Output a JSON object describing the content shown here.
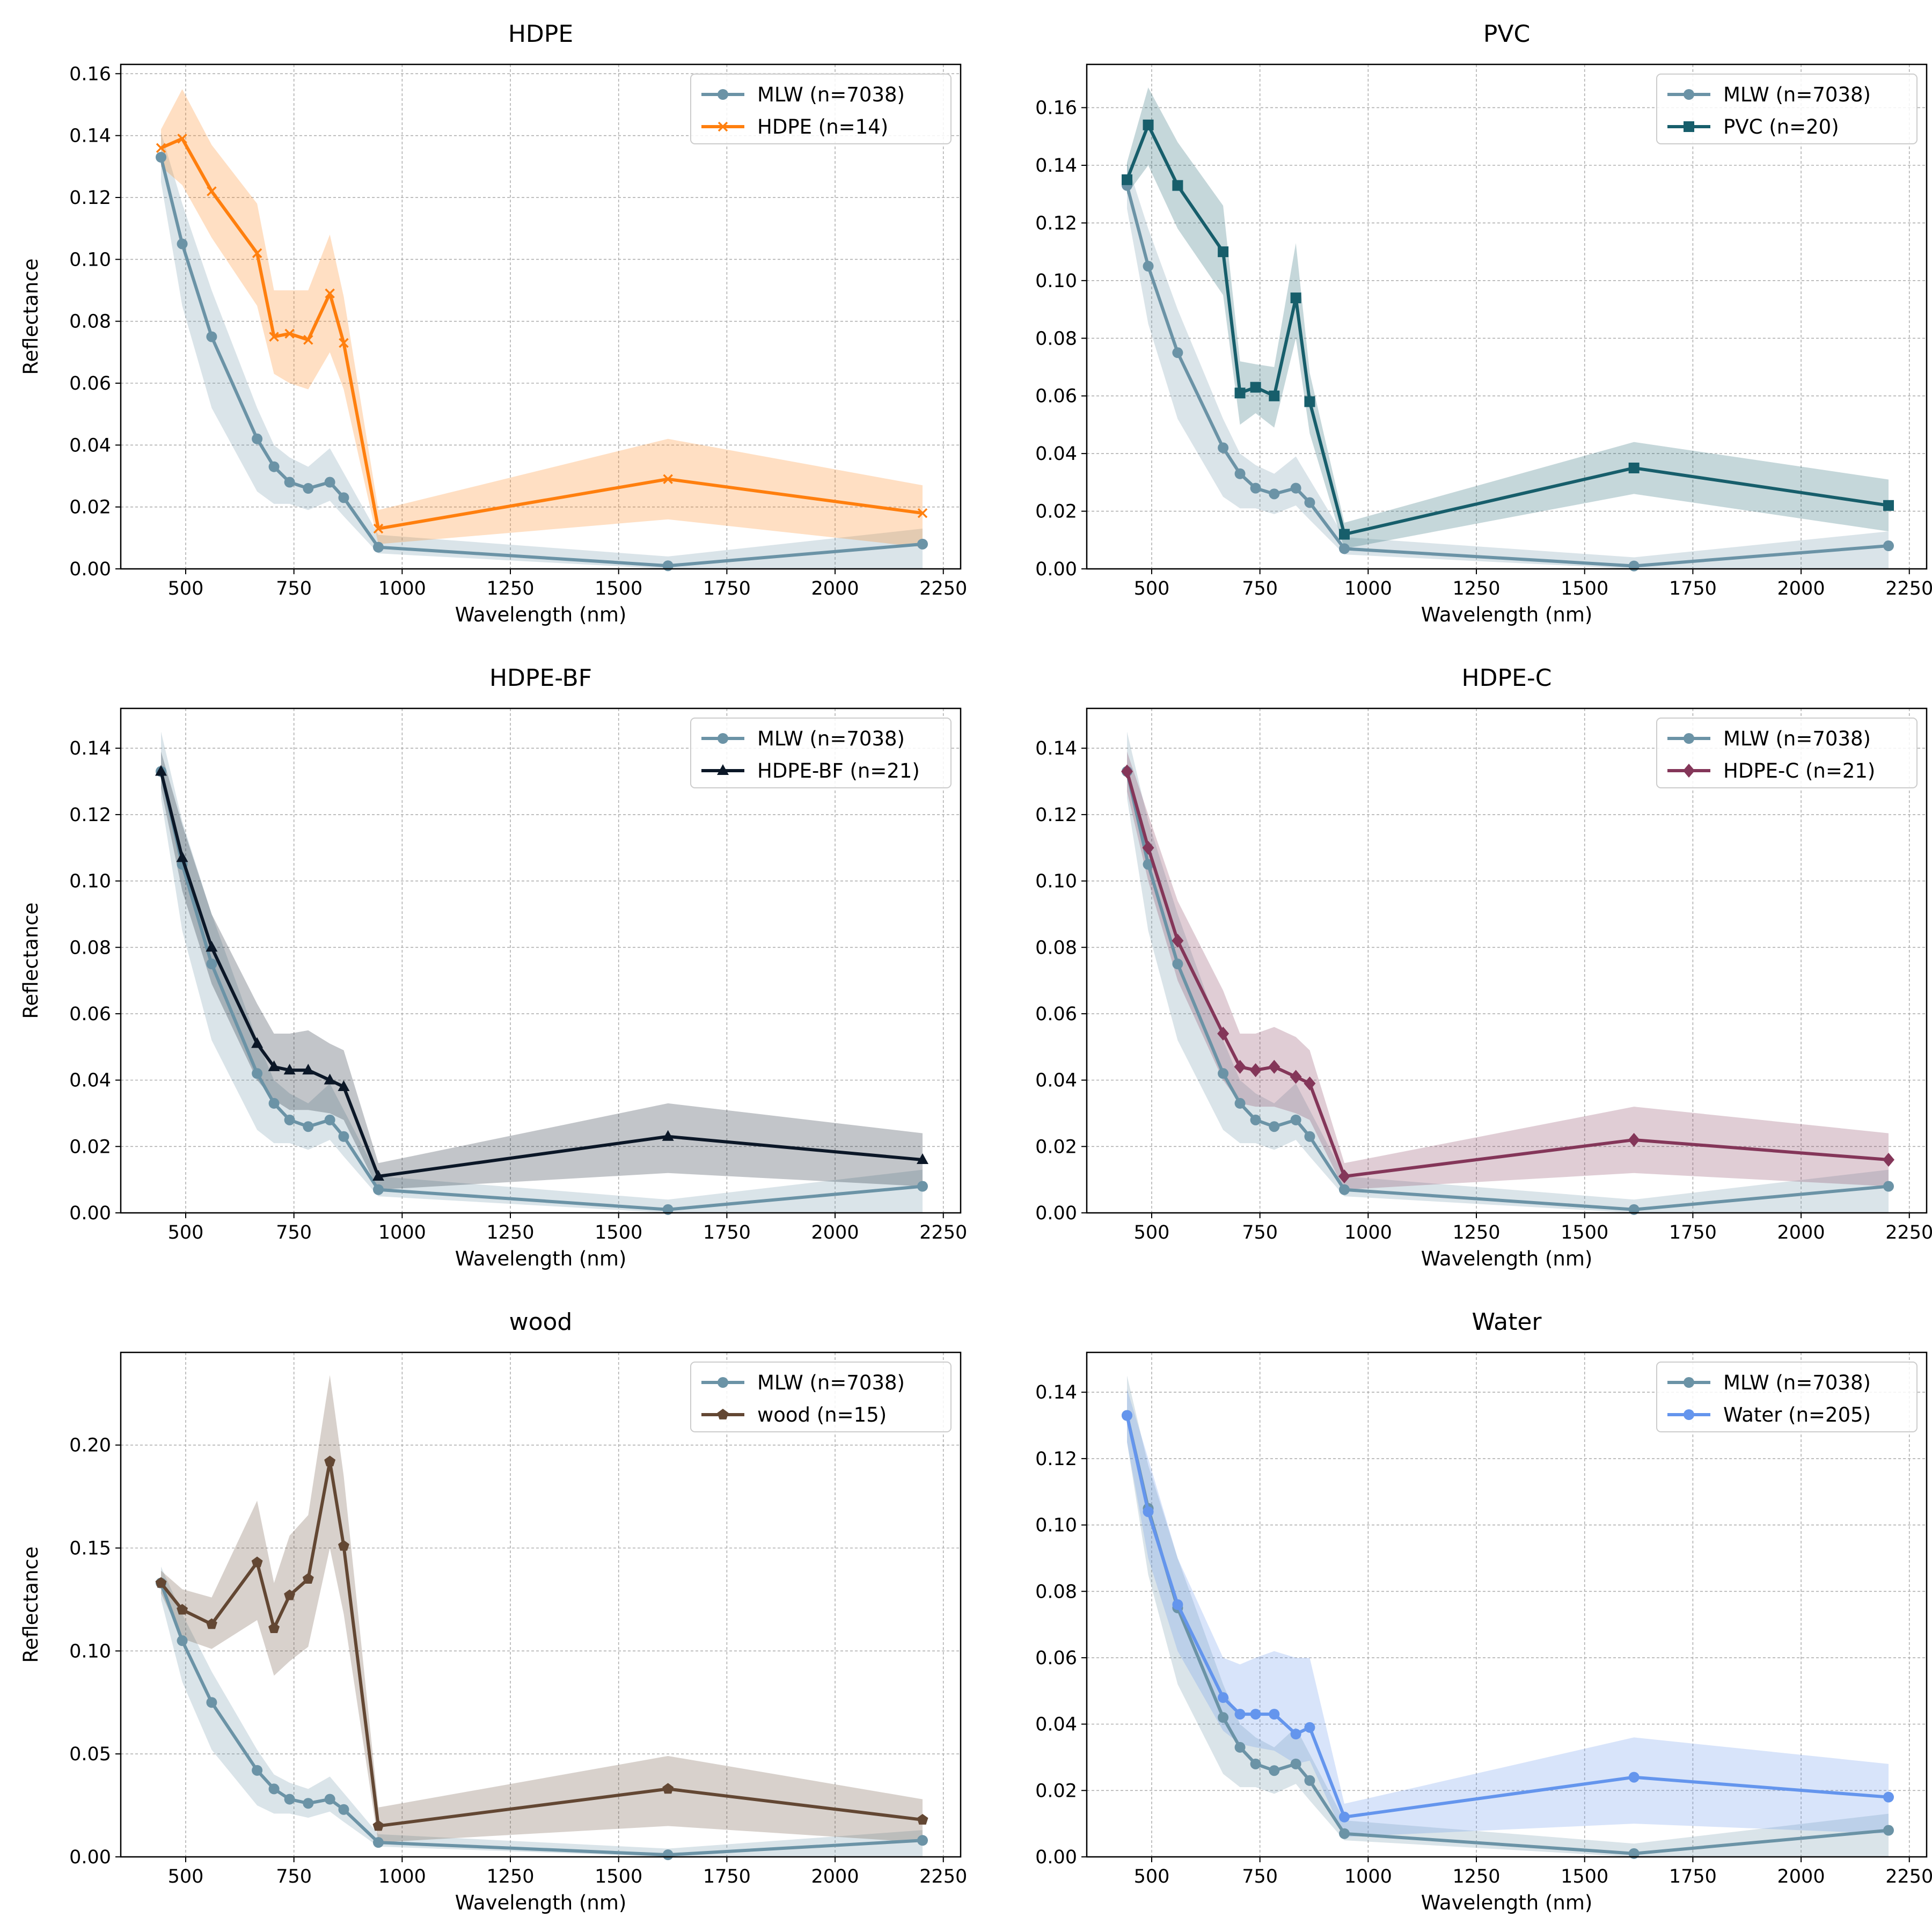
{
  "figure": {
    "xlabel": "Wavelength (nm)",
    "ylabel": "Reflectance"
  },
  "chart_data": [
    {
      "type": "line",
      "title": "HDPE",
      "xlabel": "Wavelength (nm)",
      "ylabel": "Reflectance",
      "xlim": [
        350,
        2290
      ],
      "ylim": [
        0,
        0.163
      ],
      "xticks": [
        500,
        750,
        1000,
        1250,
        1500,
        1750,
        2000,
        2250
      ],
      "yticks": [
        0.0,
        0.02,
        0.04,
        0.06,
        0.08,
        0.1,
        0.12,
        0.14,
        0.16
      ],
      "ytick_decimals": 2,
      "grid": true,
      "legend": "upper right",
      "series": [
        {
          "name": "MLW (n=7038)",
          "color": "#6b93a6",
          "marker": "circle",
          "x": [
            443,
            492,
            560,
            665,
            704,
            740,
            783,
            833,
            865,
            945,
            1614,
            2202
          ],
          "y": [
            0.133,
            0.105,
            0.075,
            0.042,
            0.033,
            0.028,
            0.026,
            0.028,
            0.023,
            0.007,
            0.001,
            0.008
          ],
          "lower": [
            0.125,
            0.085,
            0.052,
            0.025,
            0.021,
            0.021,
            0.019,
            0.022,
            0.017,
            0.005,
            0.0,
            0.0
          ],
          "upper": [
            0.141,
            0.118,
            0.09,
            0.052,
            0.04,
            0.036,
            0.033,
            0.039,
            0.031,
            0.011,
            0.004,
            0.013
          ]
        },
        {
          "name": "HDPE (n=14)",
          "color": "#ff7f0e",
          "marker": "x",
          "x": [
            443,
            492,
            560,
            665,
            704,
            740,
            783,
            833,
            865,
            945,
            1614,
            2202
          ],
          "y": [
            0.136,
            0.139,
            0.122,
            0.102,
            0.075,
            0.076,
            0.074,
            0.089,
            0.073,
            0.013,
            0.029,
            0.018
          ],
          "lower": [
            0.13,
            0.124,
            0.107,
            0.085,
            0.063,
            0.06,
            0.058,
            0.07,
            0.058,
            0.008,
            0.016,
            0.007
          ],
          "upper": [
            0.142,
            0.155,
            0.137,
            0.118,
            0.09,
            0.09,
            0.09,
            0.108,
            0.088,
            0.019,
            0.042,
            0.027
          ]
        }
      ]
    },
    {
      "type": "line",
      "title": "PVC",
      "xlabel": "Wavelength (nm)",
      "ylabel": "",
      "xlim": [
        350,
        2290
      ],
      "ylim": [
        0,
        0.175
      ],
      "xticks": [
        500,
        750,
        1000,
        1250,
        1500,
        1750,
        2000,
        2250
      ],
      "yticks": [
        0.0,
        0.02,
        0.04,
        0.06,
        0.08,
        0.1,
        0.12,
        0.14,
        0.16
      ],
      "ytick_decimals": 2,
      "grid": true,
      "legend": "upper right",
      "series": [
        {
          "name": "MLW (n=7038)",
          "color": "#6b93a6",
          "marker": "circle",
          "x": [
            443,
            492,
            560,
            665,
            704,
            740,
            783,
            833,
            865,
            945,
            1614,
            2202
          ],
          "y": [
            0.133,
            0.105,
            0.075,
            0.042,
            0.033,
            0.028,
            0.026,
            0.028,
            0.023,
            0.007,
            0.001,
            0.008
          ],
          "lower": [
            0.125,
            0.085,
            0.052,
            0.025,
            0.021,
            0.021,
            0.019,
            0.022,
            0.017,
            0.005,
            0.0,
            0.0
          ],
          "upper": [
            0.141,
            0.118,
            0.09,
            0.052,
            0.04,
            0.036,
            0.033,
            0.039,
            0.031,
            0.011,
            0.004,
            0.013
          ]
        },
        {
          "name": "PVC (n=20)",
          "color": "#175e6b",
          "marker": "square",
          "x": [
            443,
            492,
            560,
            665,
            704,
            740,
            783,
            833,
            865,
            945,
            1614,
            2202
          ],
          "y": [
            0.135,
            0.154,
            0.133,
            0.11,
            0.061,
            0.063,
            0.06,
            0.094,
            0.058,
            0.012,
            0.035,
            0.022
          ],
          "lower": [
            0.13,
            0.14,
            0.118,
            0.095,
            0.05,
            0.054,
            0.049,
            0.08,
            0.047,
            0.007,
            0.026,
            0.013
          ],
          "upper": [
            0.141,
            0.167,
            0.148,
            0.126,
            0.072,
            0.071,
            0.07,
            0.113,
            0.068,
            0.016,
            0.044,
            0.031
          ]
        }
      ]
    },
    {
      "type": "line",
      "title": "HDPE-BF",
      "xlabel": "Wavelength (nm)",
      "ylabel": "Reflectance",
      "xlim": [
        350,
        2290
      ],
      "ylim": [
        0,
        0.152
      ],
      "xticks": [
        500,
        750,
        1000,
        1250,
        1500,
        1750,
        2000,
        2250
      ],
      "yticks": [
        0.0,
        0.02,
        0.04,
        0.06,
        0.08,
        0.1,
        0.12,
        0.14
      ],
      "ytick_decimals": 2,
      "grid": true,
      "legend": "upper right",
      "series": [
        {
          "name": "MLW (n=7038)",
          "color": "#6b93a6",
          "marker": "circle",
          "x": [
            443,
            492,
            560,
            665,
            704,
            740,
            783,
            833,
            865,
            945,
            1614,
            2202
          ],
          "y": [
            0.133,
            0.105,
            0.075,
            0.042,
            0.033,
            0.028,
            0.026,
            0.028,
            0.023,
            0.007,
            0.001,
            0.008
          ],
          "lower": [
            0.125,
            0.085,
            0.052,
            0.025,
            0.021,
            0.021,
            0.019,
            0.022,
            0.017,
            0.005,
            0.0,
            0.0
          ],
          "upper": [
            0.145,
            0.118,
            0.09,
            0.052,
            0.04,
            0.036,
            0.033,
            0.039,
            0.031,
            0.011,
            0.004,
            0.013
          ]
        },
        {
          "name": "HDPE-BF (n=21)",
          "color": "#0b1727",
          "marker": "triangle",
          "x": [
            443,
            492,
            560,
            665,
            704,
            740,
            783,
            833,
            865,
            945,
            1614,
            2202
          ],
          "y": [
            0.133,
            0.107,
            0.08,
            0.051,
            0.044,
            0.043,
            0.043,
            0.04,
            0.038,
            0.011,
            0.023,
            0.016
          ],
          "lower": [
            0.128,
            0.097,
            0.069,
            0.04,
            0.034,
            0.031,
            0.031,
            0.03,
            0.028,
            0.007,
            0.012,
            0.008
          ],
          "upper": [
            0.139,
            0.117,
            0.09,
            0.063,
            0.054,
            0.054,
            0.055,
            0.051,
            0.049,
            0.015,
            0.033,
            0.024
          ]
        }
      ]
    },
    {
      "type": "line",
      "title": "HDPE-C",
      "xlabel": "Wavelength (nm)",
      "ylabel": "",
      "xlim": [
        350,
        2290
      ],
      "ylim": [
        0,
        0.152
      ],
      "xticks": [
        500,
        750,
        1000,
        1250,
        1500,
        1750,
        2000,
        2250
      ],
      "yticks": [
        0.0,
        0.02,
        0.04,
        0.06,
        0.08,
        0.1,
        0.12,
        0.14
      ],
      "ytick_decimals": 2,
      "grid": true,
      "legend": "upper right",
      "series": [
        {
          "name": "MLW (n=7038)",
          "color": "#6b93a6",
          "marker": "circle",
          "x": [
            443,
            492,
            560,
            665,
            704,
            740,
            783,
            833,
            865,
            945,
            1614,
            2202
          ],
          "y": [
            0.133,
            0.105,
            0.075,
            0.042,
            0.033,
            0.028,
            0.026,
            0.028,
            0.023,
            0.007,
            0.001,
            0.008
          ],
          "lower": [
            0.125,
            0.085,
            0.052,
            0.025,
            0.021,
            0.021,
            0.019,
            0.022,
            0.017,
            0.005,
            0.0,
            0.0
          ],
          "upper": [
            0.145,
            0.118,
            0.09,
            0.052,
            0.04,
            0.036,
            0.033,
            0.039,
            0.031,
            0.011,
            0.004,
            0.013
          ]
        },
        {
          "name": "HDPE-C (n=21)",
          "color": "#843659",
          "marker": "diamond",
          "x": [
            443,
            492,
            560,
            665,
            704,
            740,
            783,
            833,
            865,
            945,
            1614,
            2202
          ],
          "y": [
            0.133,
            0.11,
            0.082,
            0.054,
            0.044,
            0.043,
            0.044,
            0.041,
            0.039,
            0.011,
            0.022,
            0.016
          ],
          "lower": [
            0.127,
            0.1,
            0.07,
            0.04,
            0.033,
            0.032,
            0.032,
            0.03,
            0.028,
            0.007,
            0.012,
            0.008
          ],
          "upper": [
            0.139,
            0.12,
            0.094,
            0.067,
            0.054,
            0.054,
            0.056,
            0.053,
            0.049,
            0.015,
            0.032,
            0.024
          ]
        }
      ]
    },
    {
      "type": "line",
      "title": "wood",
      "xlabel": "Wavelength (nm)",
      "ylabel": "Reflectance",
      "xlim": [
        350,
        2290
      ],
      "ylim": [
        0,
        0.245
      ],
      "xticks": [
        500,
        750,
        1000,
        1250,
        1500,
        1750,
        2000,
        2250
      ],
      "yticks": [
        0.0,
        0.05,
        0.1,
        0.15,
        0.2
      ],
      "ytick_decimals": 2,
      "grid": true,
      "legend": "upper right",
      "series": [
        {
          "name": "MLW (n=7038)",
          "color": "#6b93a6",
          "marker": "circle",
          "x": [
            443,
            492,
            560,
            665,
            704,
            740,
            783,
            833,
            865,
            945,
            1614,
            2202
          ],
          "y": [
            0.133,
            0.105,
            0.075,
            0.042,
            0.033,
            0.028,
            0.026,
            0.028,
            0.023,
            0.007,
            0.001,
            0.008
          ],
          "lower": [
            0.125,
            0.085,
            0.052,
            0.025,
            0.021,
            0.021,
            0.019,
            0.022,
            0.017,
            0.005,
            0.0,
            0.0
          ],
          "upper": [
            0.141,
            0.118,
            0.09,
            0.052,
            0.04,
            0.036,
            0.033,
            0.039,
            0.031,
            0.011,
            0.004,
            0.013
          ]
        },
        {
          "name": "wood (n=15)",
          "color": "#634733",
          "marker": "pentagon",
          "x": [
            443,
            492,
            560,
            665,
            704,
            740,
            783,
            833,
            865,
            945,
            1614,
            2202
          ],
          "y": [
            0.133,
            0.12,
            0.113,
            0.143,
            0.111,
            0.127,
            0.135,
            0.192,
            0.151,
            0.015,
            0.033,
            0.018
          ],
          "lower": [
            0.128,
            0.106,
            0.101,
            0.115,
            0.088,
            0.095,
            0.102,
            0.15,
            0.118,
            0.007,
            0.015,
            0.007
          ],
          "upper": [
            0.139,
            0.13,
            0.126,
            0.173,
            0.133,
            0.156,
            0.166,
            0.234,
            0.185,
            0.024,
            0.049,
            0.028
          ]
        }
      ]
    },
    {
      "type": "line",
      "title": "Water",
      "xlabel": "Wavelength (nm)",
      "ylabel": "",
      "xlim": [
        350,
        2290
      ],
      "ylim": [
        0,
        0.152
      ],
      "xticks": [
        500,
        750,
        1000,
        1250,
        1500,
        1750,
        2000,
        2250
      ],
      "yticks": [
        0.0,
        0.02,
        0.04,
        0.06,
        0.08,
        0.1,
        0.12,
        0.14
      ],
      "ytick_decimals": 2,
      "grid": true,
      "legend": "upper right",
      "series": [
        {
          "name": "MLW (n=7038)",
          "color": "#6b93a6",
          "marker": "circle",
          "x": [
            443,
            492,
            560,
            665,
            704,
            740,
            783,
            833,
            865,
            945,
            1614,
            2202
          ],
          "y": [
            0.133,
            0.105,
            0.075,
            0.042,
            0.033,
            0.028,
            0.026,
            0.028,
            0.023,
            0.007,
            0.001,
            0.008
          ],
          "lower": [
            0.125,
            0.085,
            0.052,
            0.025,
            0.021,
            0.021,
            0.019,
            0.022,
            0.017,
            0.005,
            0.0,
            0.0
          ],
          "upper": [
            0.145,
            0.118,
            0.09,
            0.052,
            0.04,
            0.036,
            0.033,
            0.039,
            0.031,
            0.011,
            0.004,
            0.013
          ]
        },
        {
          "name": "Water (n=205)",
          "color": "#6495ed",
          "marker": "circle",
          "x": [
            443,
            492,
            560,
            665,
            704,
            740,
            783,
            833,
            865,
            945,
            1614,
            2202
          ],
          "y": [
            0.133,
            0.104,
            0.076,
            0.048,
            0.043,
            0.043,
            0.043,
            0.037,
            0.039,
            0.012,
            0.024,
            0.018
          ],
          "lower": [
            0.125,
            0.09,
            0.062,
            0.038,
            0.034,
            0.033,
            0.032,
            0.028,
            0.029,
            0.006,
            0.01,
            0.007
          ],
          "upper": [
            0.141,
            0.12,
            0.09,
            0.06,
            0.058,
            0.06,
            0.062,
            0.06,
            0.06,
            0.016,
            0.036,
            0.028
          ]
        }
      ]
    }
  ]
}
